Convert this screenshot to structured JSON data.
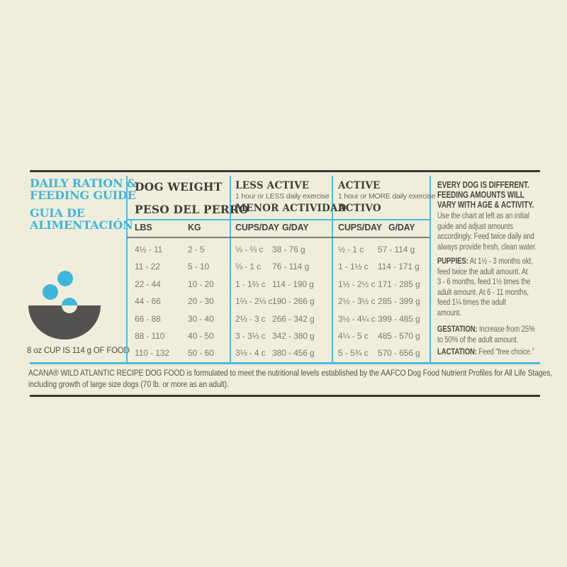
{
  "colors": {
    "background": "#F0EEDB",
    "accent_cyan": "#3DB6DC",
    "dark_text": "#403E3A",
    "body_text": "#67655F",
    "bowl_gray": "#535250"
  },
  "left": {
    "title_en": [
      "DAILY RATION &",
      "FEEDING GUIDE"
    ],
    "title_es": [
      "GUIA DE",
      "ALIMENTACIÓN"
    ],
    "cup_note": "8 oz CUP IS 114 g OF FOOD",
    "bowl_icon": "dog-food-bowl-with-kibble"
  },
  "table": {
    "sections": [
      {
        "title_en": "DOG WEIGHT",
        "subtitle": "",
        "title_es": "PESO DEL PERRO",
        "col1": "LBS",
        "col2": "KG",
        "rows": [
          [
            "4½ - 11",
            "2 - 5"
          ],
          [
            "11 - 22",
            "5 - 10"
          ],
          [
            "22 - 44",
            "10 - 20"
          ],
          [
            "44 - 66",
            "20 - 30"
          ],
          [
            "66 - 88",
            "30 - 40"
          ],
          [
            "88 - 110",
            "40 - 50"
          ],
          [
            "110 - 132",
            "50 - 60"
          ]
        ]
      },
      {
        "title_en": "LESS ACTIVE",
        "subtitle": "1 hour or LESS daily exercise",
        "title_es": "MENOR ACTIVIDAD",
        "col1": "CUPS/DAY",
        "col2": "G/DAY",
        "rows": [
          [
            "⅓ - ⅔ c",
            "38 - 76 g"
          ],
          [
            "⅔ - 1 c",
            "76 - 114 g"
          ],
          [
            "1 - 1⅔ c",
            "114 - 190 g"
          ],
          [
            "1⅔ - 2⅓ c",
            "190 - 266 g"
          ],
          [
            "2⅓ - 3 c",
            "266 - 342 g"
          ],
          [
            "3 - 3⅓ c",
            "342 - 380 g"
          ],
          [
            "3⅓ - 4 c",
            "380 - 456 g"
          ]
        ]
      },
      {
        "title_en": "ACTIVE",
        "subtitle": "1 hour or MORE daily exercise",
        "title_es": "ACTIVO",
        "col1": "CUPS/DAY",
        "col2": "G/DAY",
        "rows": [
          [
            "½ - 1 c",
            "57 - 114 g"
          ],
          [
            "1 - 1½ c",
            "114 - 171 g"
          ],
          [
            "1½ - 2½ c",
            "171 - 285 g"
          ],
          [
            "2½ - 3½ c",
            "285 - 399 g"
          ],
          [
            "3½ - 4¼ c",
            "399 - 485 g"
          ],
          [
            "4¼ - 5 c",
            "485 - 570 g"
          ],
          [
            "5 - 5¾ c",
            "570 - 656 g"
          ]
        ]
      }
    ]
  },
  "info": {
    "heading": [
      "EVERY DOG IS DIFFERENT.",
      "FEEDING AMOUNTS WILL",
      "VARY WITH AGE & ACTIVITY."
    ],
    "intro": [
      "Use the chart at left as an initial",
      "guide and adjust amounts",
      "accordingly. Feed twice daily and",
      "always provide fresh, clean water."
    ],
    "puppies_label": "PUPPIES:",
    "puppies_text": [
      " At 1½ - 3 months old,",
      "feed twice the adult amount. At",
      "3 - 6 months, feed 1½ times the",
      "adult amount. At 6 - 11 months,",
      "feed 1¼ times the adult",
      "amount."
    ],
    "gestation_label": "GESTATION:",
    "gestation_text": [
      " Increase from 25%",
      "to 50% of the adult amount."
    ],
    "lactation_label": "LACTATION:",
    "lactation_text": " Feed “free choice.”"
  },
  "footer": [
    "ACANA® WILD ATLANTIC RECIPE DOG FOOD is formulated to meet the nutritional levels established by the AAFCO Dog Food Nutrient Profiles for All Life Stages,",
    "including growth of large size dogs (70 lb. or more as an adult)."
  ]
}
